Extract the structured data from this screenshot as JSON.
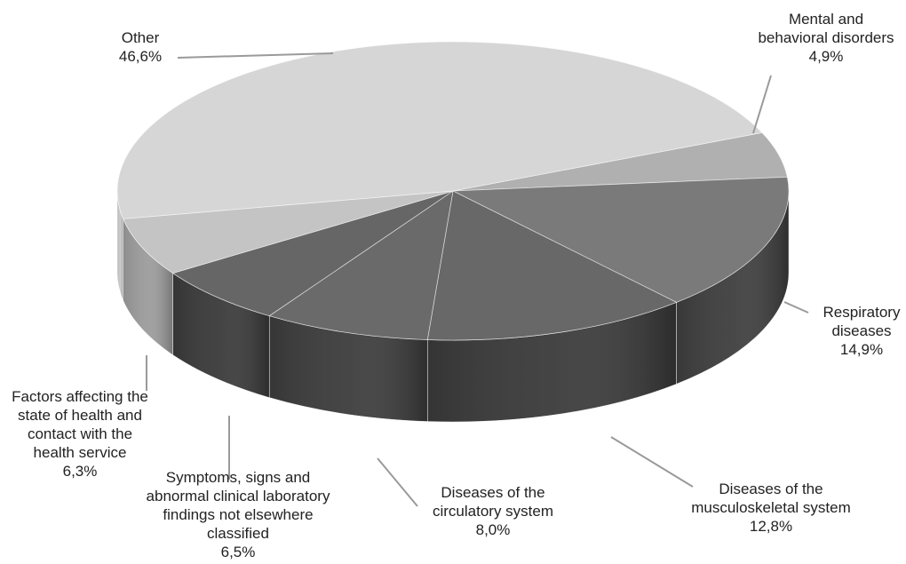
{
  "chart_data": {
    "type": "pie",
    "title": "",
    "series": [
      {
        "values": [
          {
            "label_lines": [
              "Mental and",
              "behavioral disorders"
            ],
            "pct": "4,9%",
            "value": 4.9
          },
          {
            "label_lines": [
              "Respiratory",
              "diseases"
            ],
            "pct": "14,9%",
            "value": 14.9
          },
          {
            "label_lines": [
              "Diseases of the",
              "musculoskeletal system"
            ],
            "pct": "12,8%",
            "value": 12.8
          },
          {
            "label_lines": [
              "Diseases of the",
              "circulatory system"
            ],
            "pct": "8,0%",
            "value": 8.0
          },
          {
            "label_lines": [
              "Symptoms, signs and",
              "abnormal clinical laboratory",
              "findings not elsewhere",
              "classified"
            ],
            "pct": "6,5%",
            "value": 6.5
          },
          {
            "label_lines": [
              "Factors affecting the",
              "state of health and",
              "contact with the",
              "health service"
            ],
            "pct": "6,3%",
            "value": 6.3
          },
          {
            "label_lines": [
              "Other"
            ],
            "pct": "46,6%",
            "value": 46.6
          }
        ]
      }
    ],
    "colors": [
      "#b0b0b0",
      "#7a7a7a",
      "#686868",
      "#6a6a6a",
      "#666666",
      "#c4c4c4",
      "#d6d6d6"
    ],
    "side_colors": [
      "#8e8e8e",
      "#3e3e3e",
      "#3a3a3a",
      "#3c3c3c",
      "#3a3a3a",
      "#9c9c9c",
      "#c8c8c8"
    ],
    "legend": "none",
    "style": "3d-tilted"
  }
}
